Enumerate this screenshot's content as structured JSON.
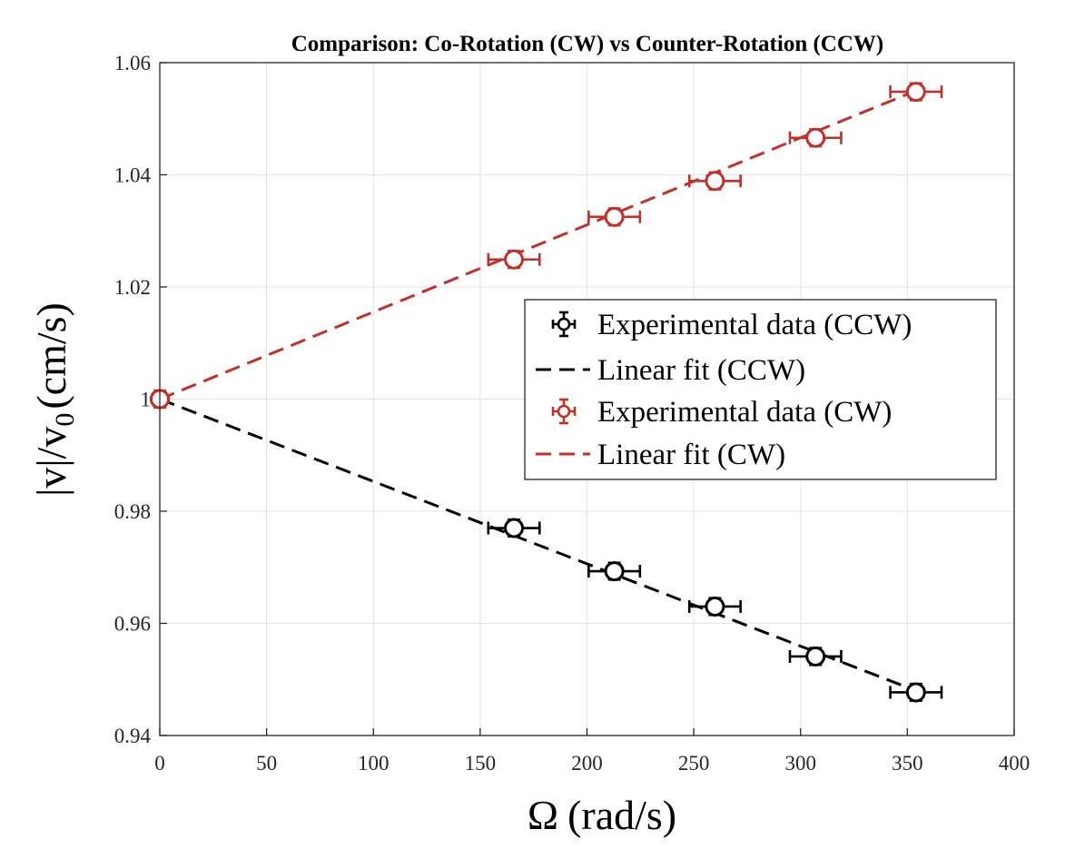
{
  "chart_data": {
    "type": "scatter",
    "title": "Comparison: Co-Rotation (CW) vs Counter-Rotation (CCW)",
    "xlabel_symbol": "Ω",
    "xlabel_unit": "(rad/s)",
    "ylabel_prefix": "|v|/v",
    "ylabel_subscript": "0",
    "ylabel_unit": "(cm/s)",
    "xlim": [
      0,
      400
    ],
    "ylim": [
      0.94,
      1.06
    ],
    "xticks": [
      0,
      50,
      100,
      150,
      200,
      250,
      300,
      350,
      400
    ],
    "xtick_labels": [
      "0",
      "50",
      "100",
      "150",
      "200",
      "250",
      "300",
      "350",
      "400"
    ],
    "yticks": [
      0.94,
      0.96,
      0.98,
      1.0,
      1.02,
      1.04,
      1.06
    ],
    "ytick_labels": [
      "0.94",
      "0.96",
      "0.98",
      "1",
      "1.02",
      "1.04",
      "1.06"
    ],
    "grid": true,
    "legend_position": "center-right",
    "series": [
      {
        "name": "Experimental data (CCW)",
        "kind": "errorbar",
        "color": "#000000",
        "x": [
          0,
          165.8,
          212.8,
          259.9,
          307.0,
          354.0
        ],
        "y": [
          1.0,
          0.977,
          0.9693,
          0.963,
          0.9541,
          0.9477
        ],
        "xerr": [
          0,
          12,
          12,
          12,
          12,
          12
        ],
        "yerr": [
          0.0015,
          0.0015,
          0.0015,
          0.0015,
          0.0015,
          0.0015
        ]
      },
      {
        "name": "Linear fit (CCW)",
        "kind": "line",
        "style": "dashed",
        "color": "#000000",
        "x": [
          0,
          354.0
        ],
        "y": [
          1.0,
          0.948
        ]
      },
      {
        "name": "Experimental data (CW)",
        "kind": "errorbar",
        "color": "#c0312b",
        "x": [
          0,
          165.8,
          212.8,
          259.9,
          307.0,
          354.0
        ],
        "y": [
          1.0,
          1.0249,
          1.0325,
          1.0389,
          1.0466,
          1.0548
        ],
        "xerr": [
          0,
          12,
          12,
          12,
          12,
          12
        ],
        "yerr": [
          0.0015,
          0.0015,
          0.0015,
          0.0015,
          0.0015,
          0.0015
        ]
      },
      {
        "name": "Linear fit (CW)",
        "kind": "line",
        "style": "dashed",
        "color": "#c0312b",
        "x": [
          0,
          354.0
        ],
        "y": [
          1.0,
          1.055
        ]
      }
    ]
  }
}
